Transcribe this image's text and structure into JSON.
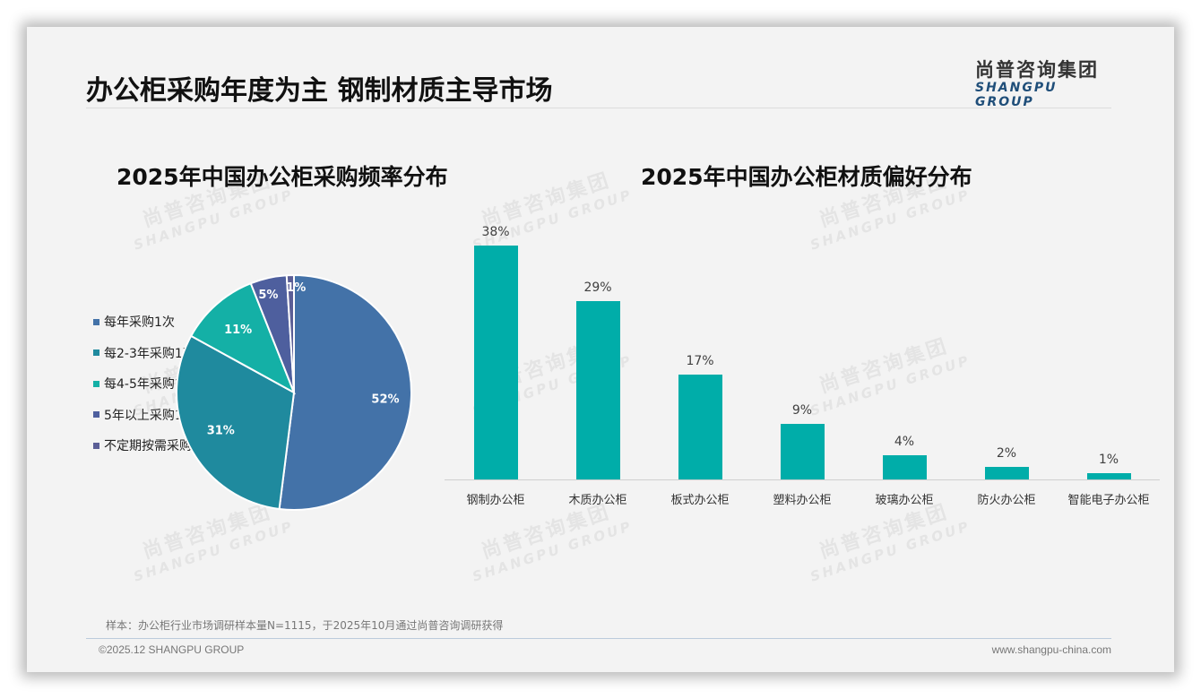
{
  "page": {
    "title": "办公柜采购年度为主 钢制材质主导市场",
    "logo": {
      "cn": "尚普咨询集团",
      "en": "SHANGPU GROUP"
    },
    "watermark": {
      "cn": "尚普咨询集团",
      "en": "SHANGPU GROUP"
    },
    "note": "样本：办公柜行业市场调研样本量N=1115，于2025年10月通过尚普咨询调研获得",
    "copyright": "©2025.12 SHANGPU GROUP",
    "website": "www.shangpu-china.com"
  },
  "chart_data": [
    {
      "type": "pie",
      "title": "2025年中国办公柜采购频率分布",
      "categories": [
        "每年采购1次",
        "每2-3年采购1次",
        "每4-5年采购1次",
        "5年以上采购1次",
        "不定期按需采购"
      ],
      "values": [
        52,
        31,
        11,
        5,
        1
      ],
      "labels": [
        "52%",
        "31%",
        "11%",
        "5%",
        "1%"
      ],
      "colors": [
        "#4372a8",
        "#1f8a9e",
        "#14b0a6",
        "#4e5f9e",
        "#5b5e96"
      ],
      "legend_position": "left"
    },
    {
      "type": "bar",
      "title": "2025年中国办公柜材质偏好分布",
      "categories": [
        "钢制办公柜",
        "木质办公柜",
        "板式办公柜",
        "塑料办公柜",
        "玻璃办公柜",
        "防火办公柜",
        "智能电子办公柜"
      ],
      "values": [
        38,
        29,
        17,
        9,
        4,
        2,
        1
      ],
      "labels": [
        "38%",
        "29%",
        "17%",
        "9%",
        "4%",
        "2%",
        "1%"
      ],
      "color": "#00ada9",
      "xlabel": "",
      "ylabel": "",
      "ylim": [
        0,
        40
      ],
      "grid": false
    }
  ]
}
